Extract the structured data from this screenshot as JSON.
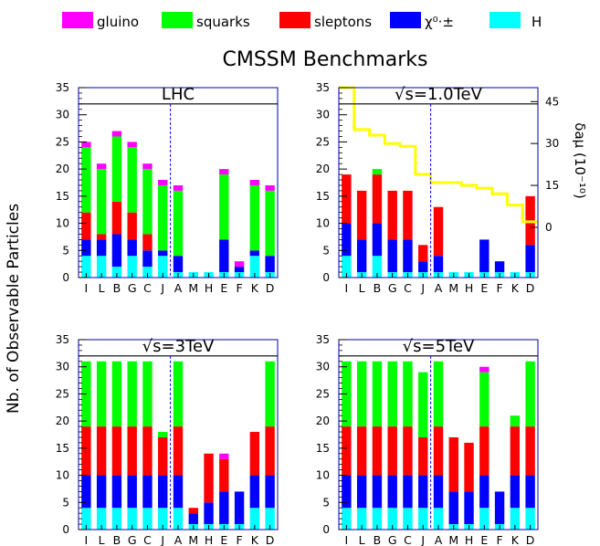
{
  "legend": [
    {
      "label": "gluino",
      "color": "#ff00ff"
    },
    {
      "label": "squarks",
      "color": "#00ff00"
    },
    {
      "label": "sleptons",
      "color": "#ff0000"
    },
    {
      "label": "χ⁰·±",
      "color": "#0000ff"
    },
    {
      "label": "H",
      "color": "#00ffff"
    }
  ],
  "title": "CMSSM Benchmarks",
  "ylabel": "Nb. of Observable Particles",
  "right_axis_label": "δaμ (10⁻¹⁰)",
  "chart_data": [
    {
      "type": "bar",
      "stacked": true,
      "title": "LHC",
      "categories": [
        "I",
        "L",
        "B",
        "G",
        "C",
        "J",
        "A",
        "M",
        "H",
        "E",
        "F",
        "K",
        "D"
      ],
      "ylim": [
        0,
        35
      ],
      "yticks": [
        0,
        5,
        10,
        15,
        20,
        25,
        30,
        35
      ],
      "divider_after_index": 5,
      "series": [
        {
          "name": "H",
          "values": [
            4,
            4,
            2,
            4,
            2,
            4,
            1,
            1,
            1,
            1,
            1,
            4,
            1
          ]
        },
        {
          "name": "χ⁰·±",
          "values": [
            3,
            3,
            6,
            3,
            3,
            1,
            3,
            0,
            0,
            6,
            1,
            1,
            3
          ]
        },
        {
          "name": "sleptons",
          "values": [
            5,
            1,
            6,
            5,
            3,
            0,
            0,
            0,
            0,
            0,
            0,
            0,
            0
          ]
        },
        {
          "name": "squarks",
          "values": [
            12,
            12,
            12,
            12,
            12,
            12,
            12,
            0,
            0,
            12,
            0,
            12,
            12
          ]
        },
        {
          "name": "gluino",
          "values": [
            1,
            1,
            1,
            1,
            1,
            1,
            1,
            0,
            0,
            1,
            1,
            1,
            1
          ]
        }
      ]
    },
    {
      "type": "bar",
      "stacked": true,
      "title": "√s=1.0TeV",
      "categories": [
        "I",
        "L",
        "B",
        "G",
        "C",
        "J",
        "A",
        "M",
        "H",
        "E",
        "F",
        "K",
        "D"
      ],
      "ylim": [
        0,
        35
      ],
      "yticks": [
        0,
        5,
        10,
        15,
        20,
        25,
        30,
        35
      ],
      "divider_after_index": 5,
      "series": [
        {
          "name": "H",
          "values": [
            4,
            1,
            4,
            1,
            1,
            1,
            1,
            1,
            1,
            1,
            1,
            1,
            1
          ]
        },
        {
          "name": "χ⁰·±",
          "values": [
            6,
            6,
            6,
            6,
            6,
            2,
            3,
            0,
            0,
            6,
            2,
            0,
            5
          ]
        },
        {
          "name": "sleptons",
          "values": [
            9,
            9,
            9,
            9,
            9,
            3,
            9,
            0,
            0,
            0,
            0,
            0,
            9
          ]
        },
        {
          "name": "squarks",
          "values": [
            0,
            0,
            1,
            0,
            0,
            0,
            0,
            0,
            0,
            0,
            0,
            0,
            0
          ]
        },
        {
          "name": "gluino",
          "values": [
            0,
            0,
            0,
            0,
            0,
            0,
            0,
            0,
            0,
            0,
            0,
            0,
            0
          ]
        }
      ],
      "secondary_axis": {
        "label": "δaμ (10⁻¹⁰)",
        "ticks": [
          0,
          15,
          30,
          45
        ],
        "range": [
          -18,
          50
        ],
        "line_color": "#ffff00",
        "values": [
          50,
          35,
          33,
          30,
          29,
          19,
          16,
          16,
          15,
          14,
          12,
          8,
          2
        ]
      }
    },
    {
      "type": "bar",
      "stacked": true,
      "title": "√s=3TeV",
      "categories": [
        "I",
        "L",
        "B",
        "G",
        "C",
        "J",
        "A",
        "M",
        "H",
        "E",
        "F",
        "K",
        "D"
      ],
      "ylim": [
        0,
        35
      ],
      "yticks": [
        0,
        5,
        10,
        15,
        20,
        25,
        30,
        35
      ],
      "divider_after_index": 5,
      "series": [
        {
          "name": "H",
          "values": [
            4,
            4,
            4,
            4,
            4,
            4,
            4,
            1,
            1,
            1,
            1,
            4,
            4
          ]
        },
        {
          "name": "χ⁰·±",
          "values": [
            6,
            6,
            6,
            6,
            6,
            6,
            6,
            2,
            4,
            6,
            6,
            6,
            6
          ]
        },
        {
          "name": "sleptons",
          "values": [
            9,
            9,
            9,
            9,
            9,
            7,
            9,
            1,
            9,
            6,
            0,
            8,
            9
          ]
        },
        {
          "name": "squarks",
          "values": [
            12,
            12,
            12,
            12,
            12,
            1,
            12,
            0,
            0,
            0,
            0,
            0,
            12
          ]
        },
        {
          "name": "gluino",
          "values": [
            0,
            0,
            0,
            0,
            0,
            0,
            0,
            0,
            0,
            1,
            0,
            0,
            0
          ]
        }
      ]
    },
    {
      "type": "bar",
      "stacked": true,
      "title": "√s=5TeV",
      "categories": [
        "I",
        "L",
        "B",
        "G",
        "C",
        "J",
        "A",
        "M",
        "H",
        "E",
        "F",
        "K",
        "D"
      ],
      "ylim": [
        0,
        35
      ],
      "yticks": [
        0,
        5,
        10,
        15,
        20,
        25,
        30,
        35
      ],
      "divider_after_index": 5,
      "series": [
        {
          "name": "H",
          "values": [
            4,
            4,
            4,
            4,
            4,
            4,
            4,
            1,
            1,
            4,
            1,
            4,
            4
          ]
        },
        {
          "name": "χ⁰·±",
          "values": [
            6,
            6,
            6,
            6,
            6,
            6,
            6,
            6,
            6,
            6,
            6,
            6,
            6
          ]
        },
        {
          "name": "sleptons",
          "values": [
            9,
            9,
            9,
            9,
            9,
            7,
            9,
            10,
            9,
            9,
            0,
            9,
            9
          ]
        },
        {
          "name": "squarks",
          "values": [
            12,
            12,
            12,
            12,
            12,
            12,
            12,
            0,
            0,
            10,
            0,
            2,
            12
          ]
        },
        {
          "name": "gluino",
          "values": [
            0,
            0,
            0,
            0,
            0,
            0,
            0,
            0,
            0,
            1,
            0,
            0,
            0
          ]
        }
      ]
    }
  ]
}
